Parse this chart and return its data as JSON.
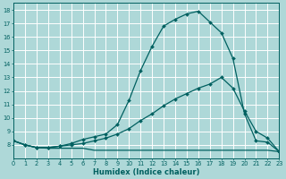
{
  "xlabel": "Humidex (Indice chaleur)",
  "bg_color": "#aed8d8",
  "grid_color": "#ffffff",
  "line_color": "#006060",
  "xlim": [
    0,
    23
  ],
  "ylim": [
    7.0,
    18.5
  ],
  "yticks": [
    8,
    9,
    10,
    11,
    12,
    13,
    14,
    15,
    16,
    17,
    18
  ],
  "xticks": [
    0,
    1,
    2,
    3,
    4,
    5,
    6,
    7,
    8,
    9,
    10,
    11,
    12,
    13,
    14,
    15,
    16,
    17,
    18,
    19,
    20,
    21,
    22,
    23
  ],
  "line_flat_x": [
    0,
    1,
    2,
    3,
    4,
    5,
    6,
    7,
    8,
    9,
    10,
    11,
    12,
    13,
    14,
    15,
    16,
    17,
    18,
    19,
    20,
    21,
    22,
    23
  ],
  "line_flat_y": [
    8.3,
    8.0,
    7.8,
    7.75,
    7.75,
    7.75,
    7.75,
    7.6,
    7.6,
    7.6,
    7.6,
    7.6,
    7.6,
    7.6,
    7.6,
    7.6,
    7.6,
    7.6,
    7.6,
    7.6,
    7.6,
    7.6,
    7.6,
    7.5
  ],
  "line_mid_x": [
    0,
    1,
    2,
    3,
    4,
    5,
    6,
    7,
    8,
    9,
    10,
    11,
    12,
    13,
    14,
    15,
    16,
    17,
    18,
    19,
    20,
    21,
    22,
    23
  ],
  "line_mid_y": [
    8.3,
    8.0,
    7.8,
    7.8,
    7.9,
    8.0,
    8.1,
    8.3,
    8.5,
    8.8,
    9.2,
    9.8,
    10.3,
    10.9,
    11.4,
    11.8,
    12.2,
    12.5,
    13.0,
    12.2,
    10.5,
    9.0,
    8.5,
    7.5
  ],
  "line_top_x": [
    0,
    1,
    2,
    3,
    4,
    5,
    6,
    7,
    8,
    9,
    10,
    11,
    12,
    13,
    14,
    15,
    16,
    17,
    18,
    19,
    20,
    21,
    22,
    23
  ],
  "line_top_y": [
    8.3,
    8.0,
    7.8,
    7.8,
    7.9,
    8.1,
    8.4,
    8.6,
    8.8,
    9.5,
    11.3,
    13.5,
    15.3,
    16.8,
    17.3,
    17.7,
    17.9,
    17.1,
    16.3,
    14.4,
    10.3,
    8.3,
    8.2,
    7.5
  ],
  "line_top_marker_x": [
    0,
    1,
    2,
    3,
    4,
    5,
    6,
    7,
    8,
    9,
    10,
    11,
    12,
    13,
    14,
    15,
    16,
    17,
    18,
    19,
    20,
    21,
    22,
    23
  ],
  "line_mid_marker_x": [
    0,
    1,
    2,
    3,
    4,
    5,
    6,
    7,
    8,
    9,
    10,
    11,
    12,
    13,
    14,
    15,
    16,
    17,
    18,
    19,
    20,
    21,
    22,
    23
  ]
}
